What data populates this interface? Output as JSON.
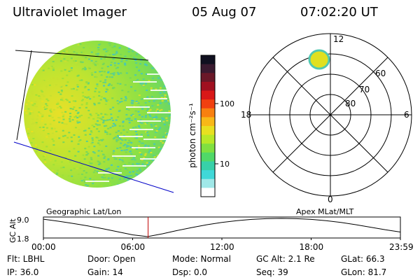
{
  "header": {
    "instrument": "Ultraviolet Imager",
    "date": "05 Aug 07",
    "time": "07:02:20 UT"
  },
  "colorbar": {
    "label": "photon cm⁻²s⁻¹",
    "tick_labels": [
      "100",
      "10"
    ],
    "colors": [
      "#101020",
      "#3a1a30",
      "#6a1828",
      "#a01020",
      "#d81818",
      "#f04010",
      "#f88010",
      "#f8b818",
      "#e8e020",
      "#b8e828",
      "#80e040",
      "#50d868",
      "#38d0a8",
      "#40d8d8",
      "#a0e8e8",
      "#ffffff"
    ]
  },
  "polar": {
    "lat_labels": [
      "60",
      "70",
      "80"
    ],
    "mlt_labels": [
      "12",
      "18",
      "6",
      "0"
    ],
    "rings_deg": [
      50,
      60,
      70,
      80
    ]
  },
  "image": {
    "accent": "#a8e030",
    "bright": "#e0e020",
    "dark": "#50c8b0",
    "line_color": "#0000c8"
  },
  "timeline": {
    "ylabel": "GC Alt",
    "left_label": "Geographic Lat/Lon",
    "right_label": "Apex MLat/MLT",
    "y_ticks": [
      "9.0",
      "1.8"
    ],
    "x_ticks": [
      "00:00",
      "06:00",
      "12:00",
      "18:00",
      "23:59"
    ],
    "marker_color": "#c00000"
  },
  "chart_data": {
    "type": "line",
    "title": "Ultraviolet Imager",
    "xlabel": "",
    "ylabel": "GC Alt",
    "ylim": [
      1.8,
      9.0
    ],
    "x_hours": [
      0,
      1,
      2,
      3,
      4,
      5,
      6,
      7,
      8,
      9,
      10,
      11,
      12,
      13,
      14,
      15,
      16,
      17,
      18,
      19,
      20,
      21,
      22,
      23,
      24
    ],
    "series": [
      {
        "values": [
          8.7,
          7.9,
          7.0,
          6.0,
          4.9,
          3.7,
          2.5,
          1.8,
          2.9,
          4.2,
          5.4,
          6.5,
          7.4,
          8.1,
          8.6,
          8.9,
          9.0,
          8.9,
          8.6,
          8.1,
          7.4,
          6.5,
          5.5,
          4.5,
          3.6
        ]
      }
    ],
    "current_time_hours": 7.04
  },
  "status": {
    "flt": "Flt: LBHL",
    "ip": "IP: 36.0",
    "door": "Door: Open",
    "gain": "Gain: 14",
    "mode": "Mode: Normal",
    "dsp": "Dsp:     0.0",
    "gc_alt": "GC Alt: 2.1 Re",
    "seq": "Seq: 39",
    "glat": "GLat:   66.3",
    "glon": "GLon:   81.7"
  }
}
